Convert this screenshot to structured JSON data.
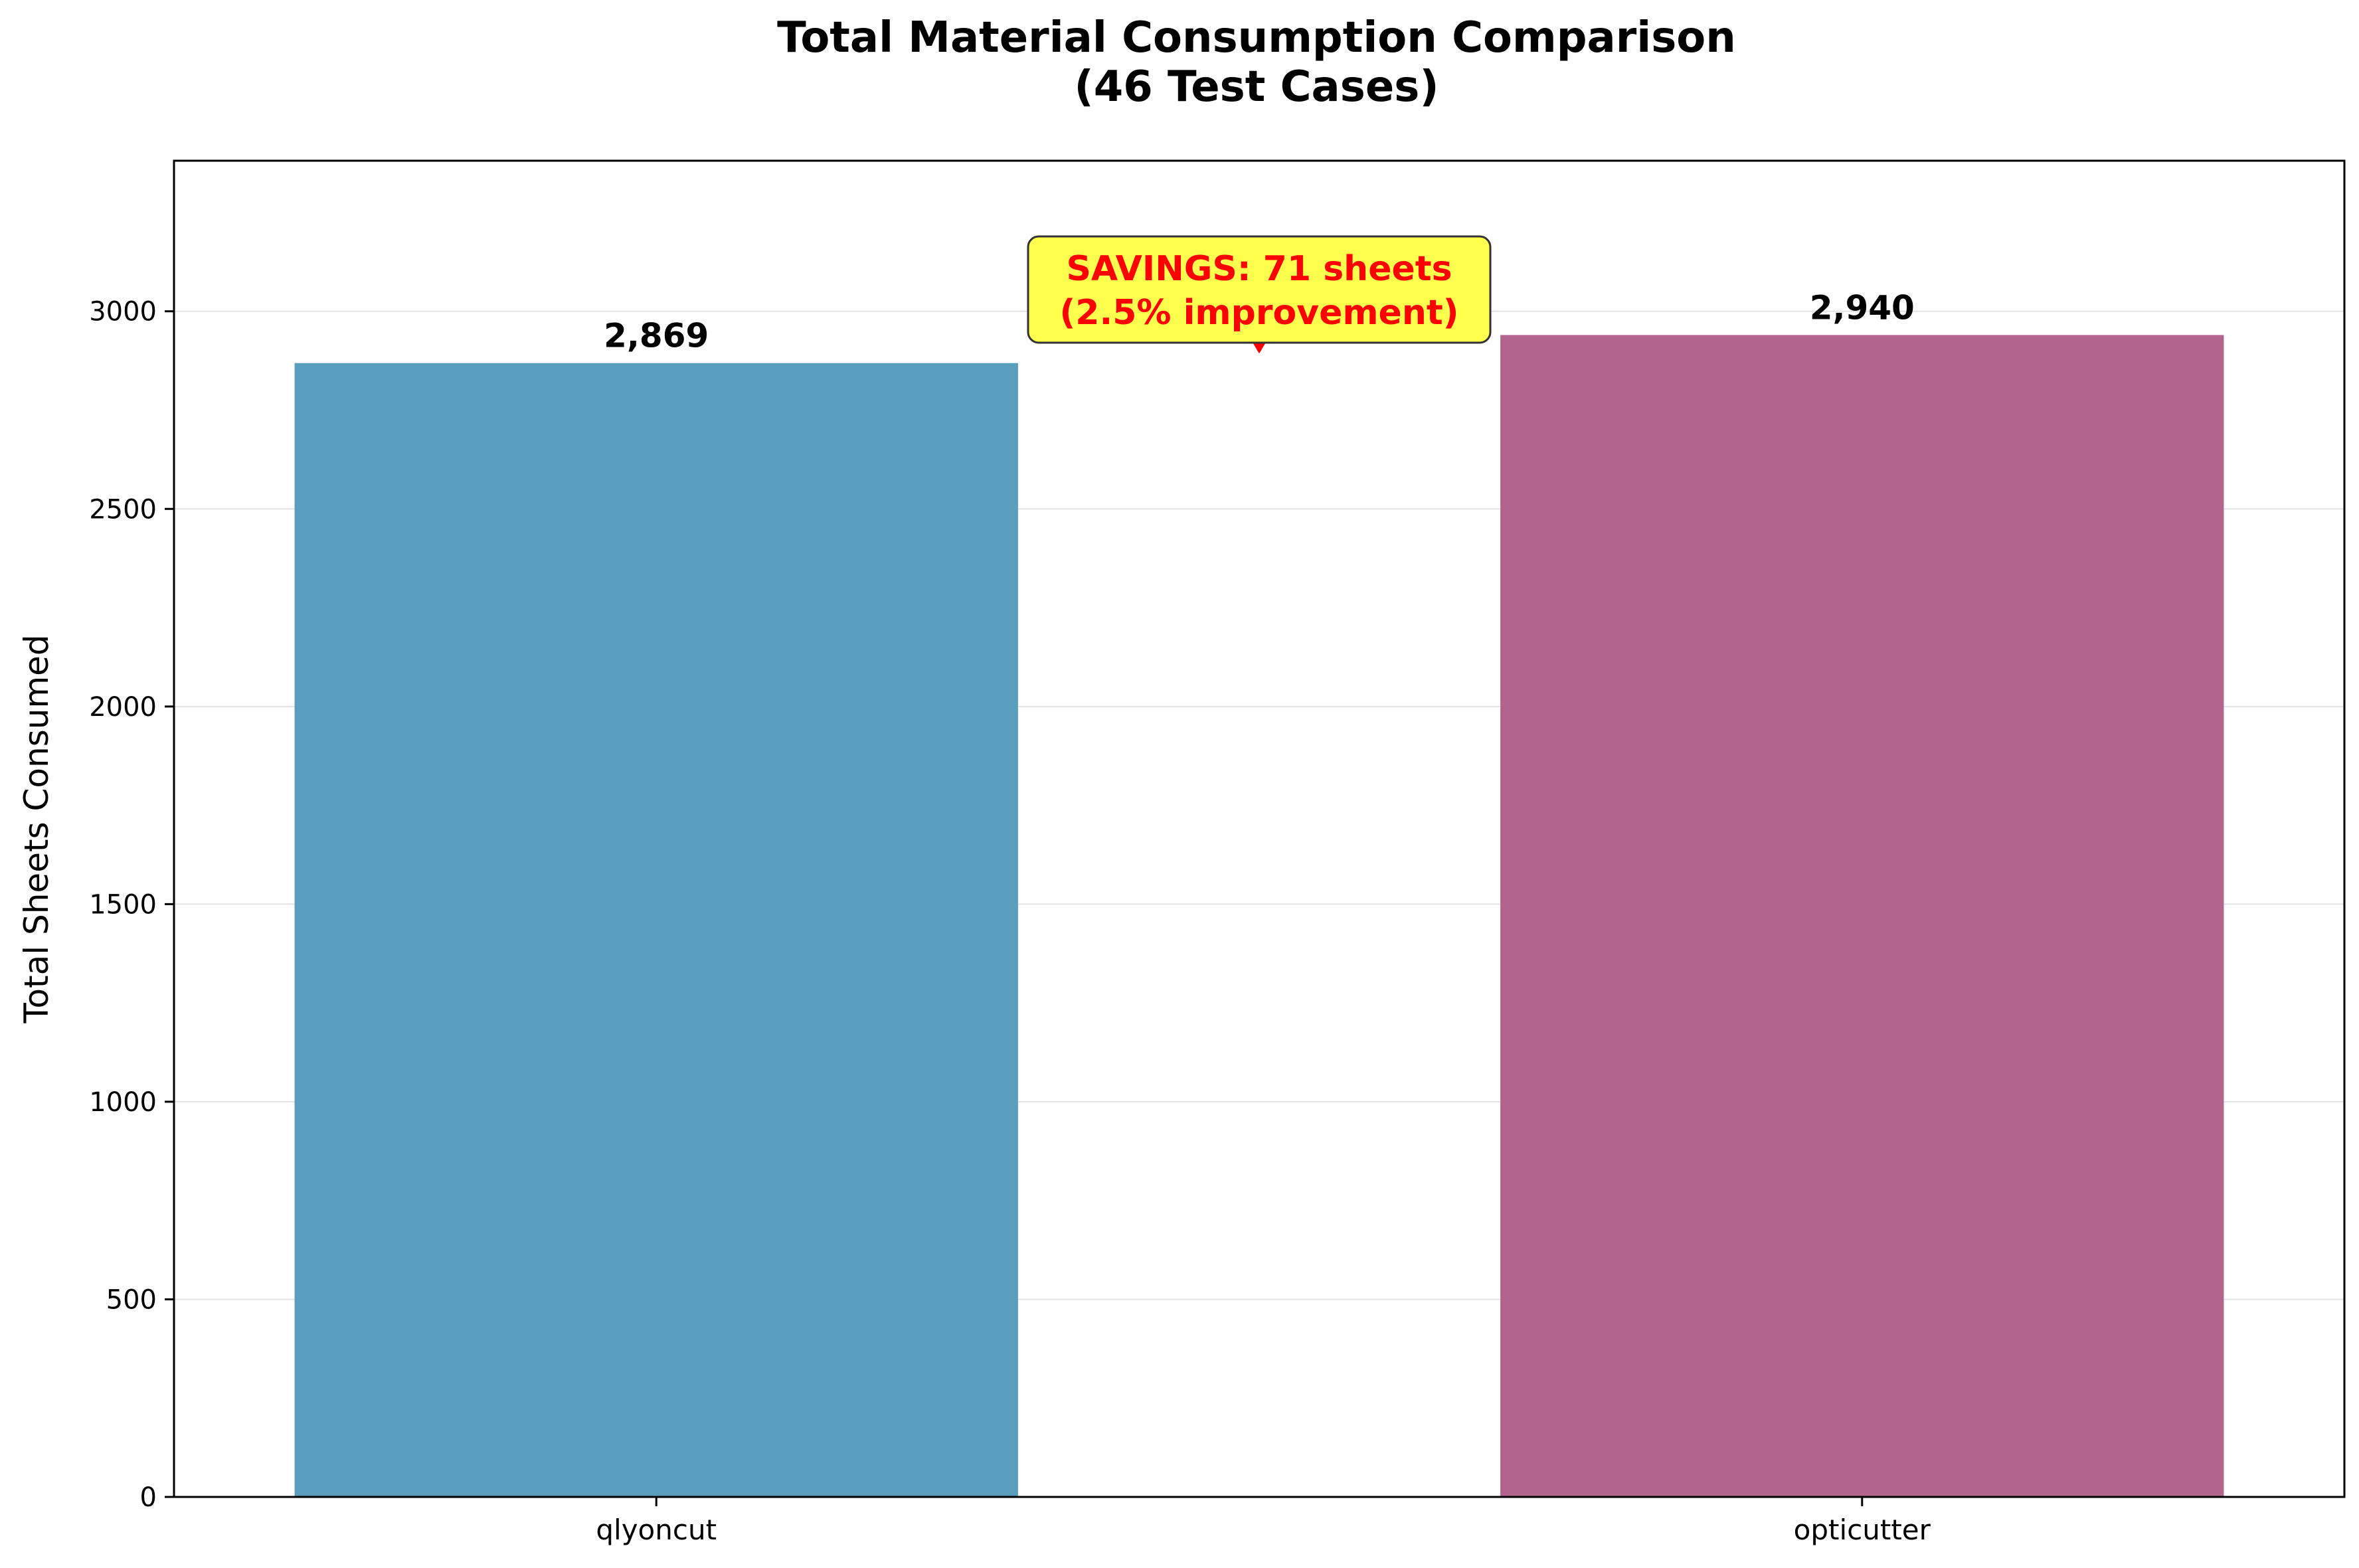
{
  "chart_data": {
    "type": "bar",
    "title": "Total Material Consumption Comparison",
    "subtitle": "(46 Test Cases)",
    "xlabel": "",
    "ylabel": "Total Sheets Consumed",
    "categories": [
      "qlyoncut",
      "opticutter"
    ],
    "values": [
      2869,
      2940
    ],
    "value_labels": [
      "2,869",
      "2,940"
    ],
    "colors": [
      "#5a9ebd",
      "#b3648c"
    ],
    "ylim": [
      0,
      3381
    ],
    "yticks": [
      0,
      500,
      1000,
      1500,
      2000,
      2500,
      3000
    ],
    "grid": true,
    "annotation": {
      "line1": "SAVINGS: 71 sheets",
      "line2": "(2.5% improvement)",
      "text_color": "#ff0000",
      "box_color": "#ffff4d",
      "arrow_color": "#ff0000",
      "points_to_value": 2900
    }
  }
}
